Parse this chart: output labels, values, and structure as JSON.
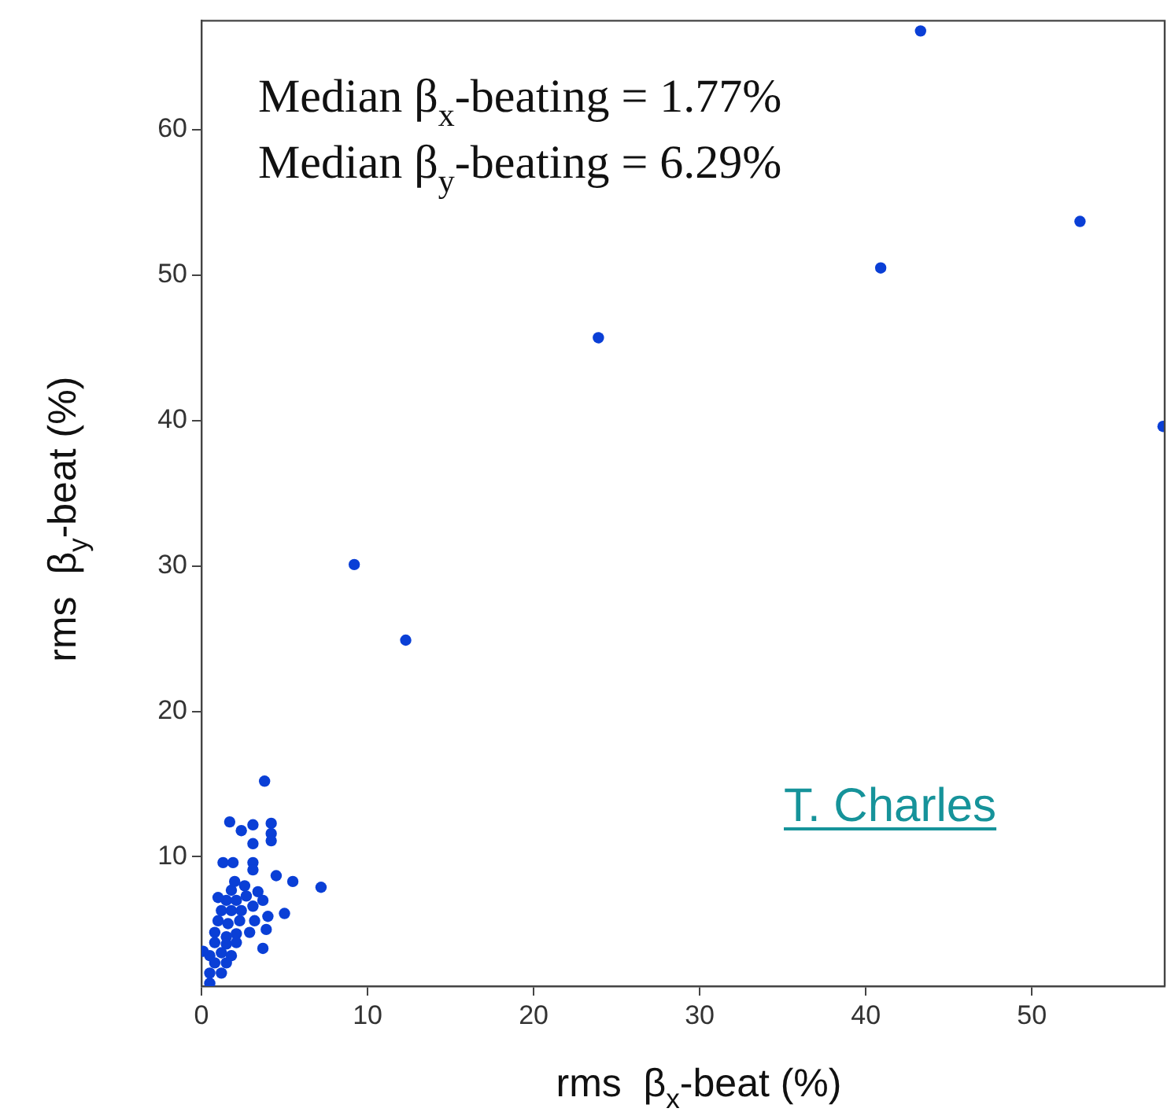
{
  "chart_data": {
    "type": "scatter",
    "xlabel": "rms  β$_{x}$-beat (%)",
    "ylabel": "rms  β$_{y}$-beat (%)",
    "annotations": [
      "Median β$_{x}$-beating = 1.77%",
      "Median β$_{y}$-beating = 6.29%",
      "T. Charles"
    ],
    "xlim": [
      0,
      58
    ],
    "xticks": [
      0,
      10,
      20,
      30,
      40,
      50
    ],
    "ylim": [
      1.1,
      67.5
    ],
    "yticks": [
      10,
      20,
      30,
      40,
      50,
      60
    ],
    "grid": false,
    "legend": false,
    "marker": "circle",
    "series": [
      {
        "color": "#0a3fd6",
        "x": [
          3.8,
          1.7,
          2.4,
          3.1,
          4.2,
          4.2,
          4.2,
          3.1,
          1.3,
          1.9,
          3.1,
          3.1,
          4.5,
          5.5,
          7.2,
          1.8,
          1.5,
          2.1,
          2.7,
          1.2,
          1.8,
          2.4,
          3.1,
          3.7,
          4.0,
          5.0,
          1.0,
          1.6,
          2.3,
          3.2,
          3.9,
          0.8,
          1.5,
          2.1,
          2.9,
          0.8,
          1.5,
          2.1,
          1.2,
          1.8,
          0.5,
          3.7,
          0.8,
          1.5,
          0.5,
          1.2,
          0.5,
          0.1,
          2.6,
          3.4,
          1.0,
          2.0,
          9.2,
          12.3,
          23.9,
          40.9,
          52.9,
          57.9,
          43.3
        ],
        "values": [
          15.2,
          12.4,
          11.8,
          12.2,
          12.3,
          11.6,
          11.1,
          10.9,
          9.6,
          9.6,
          9.6,
          9.1,
          8.7,
          8.3,
          7.9,
          7.7,
          7.0,
          7.0,
          7.3,
          6.3,
          6.3,
          6.3,
          6.6,
          7.0,
          5.9,
          6.1,
          5.6,
          5.4,
          5.6,
          5.6,
          5.0,
          4.8,
          4.5,
          4.7,
          4.8,
          4.1,
          4.0,
          4.1,
          3.4,
          3.2,
          3.2,
          3.7,
          2.7,
          2.7,
          2.0,
          2.0,
          1.3,
          3.5,
          8.0,
          7.6,
          7.2,
          8.3,
          30.1,
          24.9,
          45.7,
          50.5,
          53.7,
          39.6,
          66.8
        ]
      }
    ]
  }
}
